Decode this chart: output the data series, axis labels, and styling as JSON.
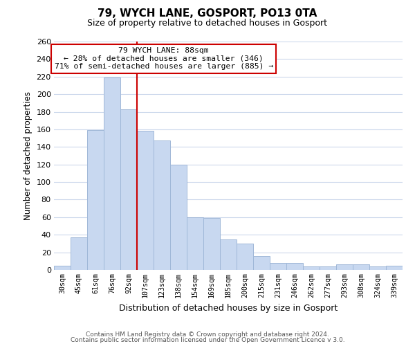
{
  "title": "79, WYCH LANE, GOSPORT, PO13 0TA",
  "subtitle": "Size of property relative to detached houses in Gosport",
  "xlabel": "Distribution of detached houses by size in Gosport",
  "ylabel": "Number of detached properties",
  "categories": [
    "30sqm",
    "45sqm",
    "61sqm",
    "76sqm",
    "92sqm",
    "107sqm",
    "123sqm",
    "138sqm",
    "154sqm",
    "169sqm",
    "185sqm",
    "200sqm",
    "215sqm",
    "231sqm",
    "246sqm",
    "262sqm",
    "277sqm",
    "293sqm",
    "308sqm",
    "324sqm",
    "339sqm"
  ],
  "values": [
    5,
    37,
    159,
    219,
    183,
    158,
    147,
    120,
    60,
    59,
    35,
    30,
    16,
    8,
    8,
    4,
    4,
    6,
    6,
    4,
    5
  ],
  "bar_color": "#c8d8f0",
  "bar_edge_color": "#a0b8d8",
  "vline_index": 4,
  "vline_color": "#cc0000",
  "annotation_line1": "79 WYCH LANE: 88sqm",
  "annotation_line2": "← 28% of detached houses are smaller (346)",
  "annotation_line3": "71% of semi-detached houses are larger (885) →",
  "annotation_box_color": "#ffffff",
  "annotation_box_edge": "#cc0000",
  "ylim": [
    0,
    260
  ],
  "yticks": [
    0,
    20,
    40,
    60,
    80,
    100,
    120,
    140,
    160,
    180,
    200,
    220,
    240,
    260
  ],
  "footer1": "Contains HM Land Registry data © Crown copyright and database right 2024.",
  "footer2": "Contains public sector information licensed under the Open Government Licence v 3.0.",
  "background_color": "#ffffff",
  "grid_color": "#ccd8ec"
}
